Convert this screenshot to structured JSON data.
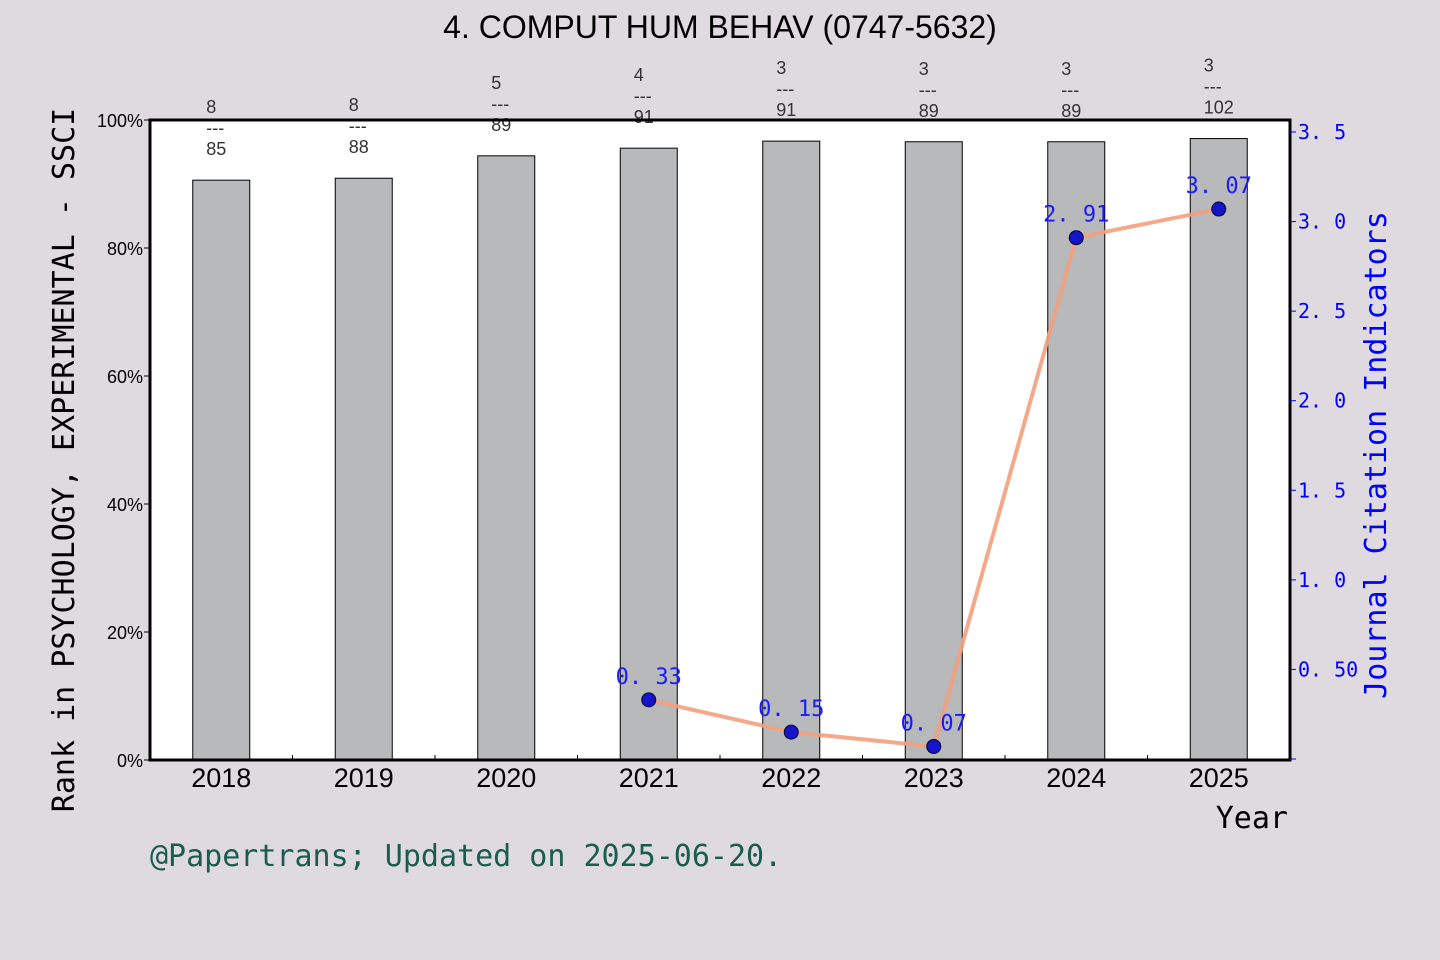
{
  "chart_data": {
    "type": "bar",
    "title": "4. COMPUT HUM BEHAV (0747-5632)",
    "xlabel": "Year",
    "ylabel": "Rank in PSYCHOLOGY, EXPERIMENTAL - SSCI",
    "y2label": "Journal Citation Indicators",
    "categories": [
      "2018",
      "2019",
      "2020",
      "2021",
      "2022",
      "2023",
      "2024",
      "2025"
    ],
    "ylim": [
      0,
      100
    ],
    "yticks": [
      "0%",
      "20%",
      "40%",
      "60%",
      "80%",
      "100%"
    ],
    "y2lim": [
      0,
      3.5
    ],
    "y2ticks": [
      "0.50",
      "1.0",
      "1.5",
      "2.0",
      "2.5",
      "3.0",
      "3.5"
    ],
    "grid": false,
    "bars": {
      "values": [
        90.6,
        90.9,
        94.4,
        95.6,
        96.7,
        96.6,
        96.6,
        97.1
      ],
      "rank": [
        "8",
        "8",
        "5",
        "4",
        "3",
        "3",
        "3",
        "3"
      ],
      "total": [
        "85",
        "88",
        "89",
        "91",
        "91",
        "89",
        "89",
        "102"
      ],
      "separator": "---",
      "color": "#b8b9bb"
    },
    "line": {
      "categories": [
        "2021",
        "2022",
        "2023",
        "2024",
        "2025"
      ],
      "values": [
        0.33,
        0.15,
        0.07,
        2.91,
        3.07
      ],
      "labels": [
        "0.33",
        "0.15",
        "0.07",
        "2.91",
        "3.07"
      ],
      "color": "#f4a07e",
      "marker_color": "#1414c8"
    },
    "axis2_color": "#0000ff"
  },
  "footer": "@Papertrans; Updated on 2025-06-20."
}
